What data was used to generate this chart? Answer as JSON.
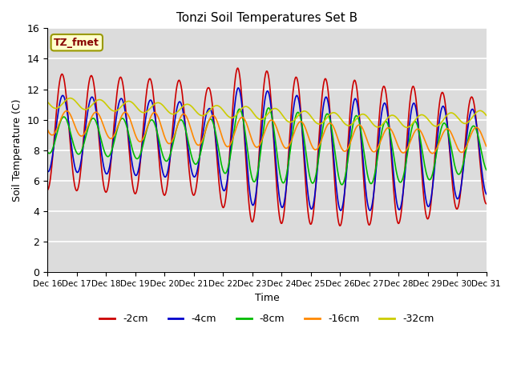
{
  "title": "Tonzi Soil Temperatures Set B",
  "xlabel": "Time",
  "ylabel": "Soil Temperature (C)",
  "ylim": [
    0,
    16
  ],
  "yticks": [
    0,
    2,
    4,
    6,
    8,
    10,
    12,
    14,
    16
  ],
  "bg_color": "#dcdcdc",
  "series": [
    {
      "label": "-2cm",
      "color": "#cc0000",
      "means": [
        9.2,
        9.1,
        9.0,
        8.9,
        8.8,
        8.6,
        8.4,
        8.2,
        8.0,
        7.9,
        7.8,
        7.7,
        7.7,
        7.8,
        8.0
      ],
      "amplitudes": [
        3.8,
        3.8,
        3.8,
        3.8,
        3.8,
        3.5,
        5.0,
        5.0,
        4.8,
        4.8,
        4.8,
        4.5,
        4.5,
        4.0,
        3.5
      ],
      "phase": 0.0
    },
    {
      "label": "-4cm",
      "color": "#0000cc",
      "means": [
        9.1,
        9.0,
        8.9,
        8.8,
        8.7,
        8.5,
        8.3,
        8.1,
        7.9,
        7.8,
        7.7,
        7.6,
        7.6,
        7.7,
        7.9
      ],
      "amplitudes": [
        2.5,
        2.5,
        2.5,
        2.5,
        2.5,
        2.2,
        3.8,
        3.8,
        3.7,
        3.7,
        3.7,
        3.5,
        3.5,
        3.2,
        2.8
      ],
      "phase": 0.15
    },
    {
      "label": "-8cm",
      "color": "#00bb00",
      "means": [
        9.0,
        8.9,
        8.8,
        8.7,
        8.6,
        8.5,
        8.4,
        8.3,
        8.2,
        8.1,
        8.0,
        7.9,
        7.9,
        8.0,
        8.1
      ],
      "amplitudes": [
        1.2,
        1.2,
        1.3,
        1.3,
        1.4,
        1.5,
        2.3,
        2.5,
        2.3,
        2.3,
        2.3,
        2.0,
        2.0,
        1.8,
        1.5
      ],
      "phase": 0.4
    },
    {
      "label": "-16cm",
      "color": "#ff8800",
      "means": [
        9.8,
        9.7,
        9.6,
        9.5,
        9.4,
        9.3,
        9.2,
        9.1,
        9.0,
        8.9,
        8.8,
        8.7,
        8.6,
        8.6,
        8.7
      ],
      "amplitudes": [
        0.8,
        0.8,
        0.9,
        1.0,
        1.0,
        1.0,
        1.0,
        0.9,
        0.9,
        0.9,
        0.9,
        0.8,
        0.8,
        0.8,
        0.8
      ],
      "phase": 1.0
    },
    {
      "label": "-32cm",
      "color": "#cccc00",
      "means": [
        11.1,
        11.0,
        10.9,
        10.8,
        10.7,
        10.6,
        10.5,
        10.4,
        10.2,
        10.1,
        10.0,
        9.9,
        9.9,
        10.0,
        10.2
      ],
      "amplitudes": [
        0.35,
        0.35,
        0.35,
        0.35,
        0.35,
        0.35,
        0.4,
        0.4,
        0.4,
        0.4,
        0.4,
        0.4,
        0.4,
        0.4,
        0.4
      ],
      "phase": 1.8
    }
  ],
  "xtick_labels": [
    "Dec 16",
    "Dec 17",
    "Dec 18",
    "Dec 19",
    "Dec 20",
    "Dec 21",
    "Dec 22",
    "Dec 23",
    "Dec 24",
    "Dec 25",
    "Dec 26",
    "Dec 27",
    "Dec 28",
    "Dec 29",
    "Dec 30",
    "Dec 31"
  ],
  "label_box_text": "TZ_fmet",
  "label_box_color": "#ffffcc",
  "label_box_text_color": "#880000",
  "legend_colors": [
    "#cc0000",
    "#0000cc",
    "#00bb00",
    "#ff8800",
    "#cccc00"
  ],
  "legend_labels": [
    "-2cm",
    "-4cm",
    "-8cm",
    "-16cm",
    "-32cm"
  ]
}
